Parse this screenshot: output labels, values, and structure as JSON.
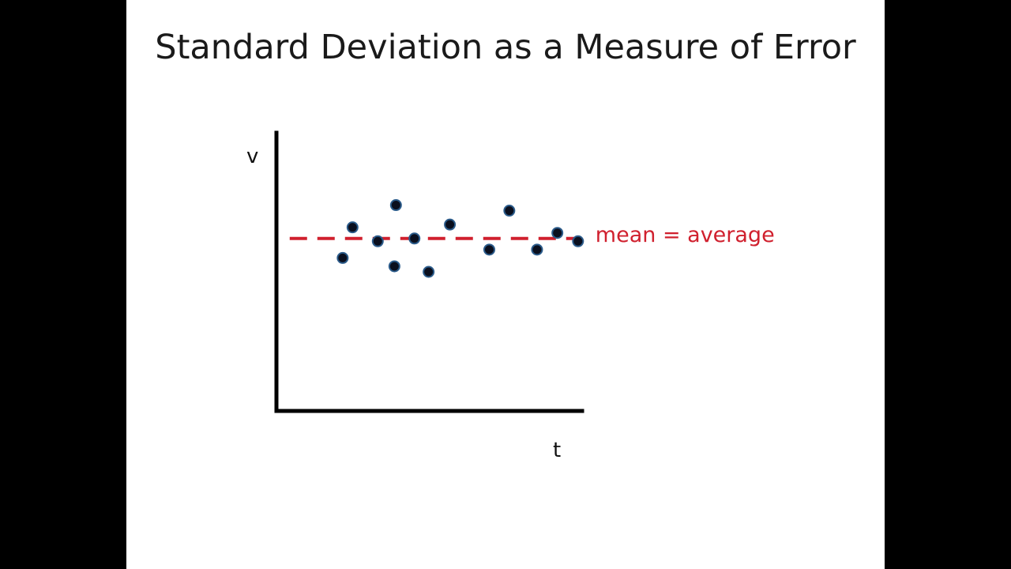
{
  "slide": {
    "title": "Standard Deviation as a Measure of Error"
  },
  "colors": {
    "background": "#ffffff",
    "letterbox": "#000000",
    "axis": "#000000",
    "points": "#0a0f1e",
    "mean_line": "#d0202e"
  },
  "chart_data": {
    "type": "scatter",
    "title": "Standard Deviation as a Measure of Error",
    "xlabel": "t",
    "ylabel": "v",
    "xlim": [
      0,
      100
    ],
    "ylim": [
      0,
      100
    ],
    "grid": false,
    "points": [
      {
        "x": 21.5,
        "y": 55
      },
      {
        "x": 24.7,
        "y": 66
      },
      {
        "x": 32.9,
        "y": 61
      },
      {
        "x": 38.3,
        "y": 52
      },
      {
        "x": 38.8,
        "y": 74
      },
      {
        "x": 44.8,
        "y": 62
      },
      {
        "x": 49.4,
        "y": 50
      },
      {
        "x": 56.3,
        "y": 67
      },
      {
        "x": 69.1,
        "y": 58
      },
      {
        "x": 75.6,
        "y": 72
      },
      {
        "x": 84.6,
        "y": 58
      },
      {
        "x": 91.2,
        "y": 64
      },
      {
        "x": 97.9,
        "y": 61
      }
    ],
    "mean": {
      "y": 62,
      "x_start": 4.3,
      "x_end": 97.9,
      "style": "dashed",
      "label": "mean = average"
    }
  }
}
